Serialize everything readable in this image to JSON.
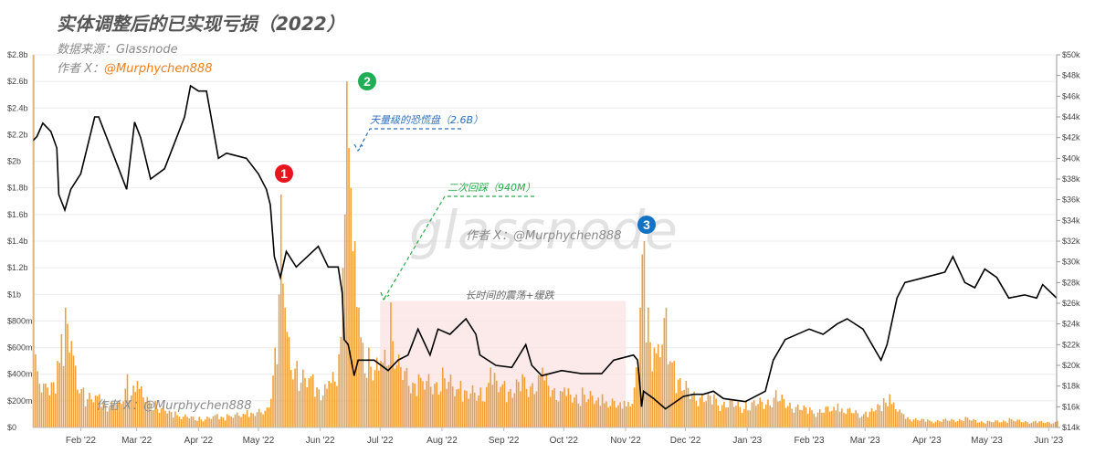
{
  "header": {
    "title": "实体调整后的已实现亏损（2022）",
    "source": "数据来源：Glassnode",
    "author_prefix": "作者 X：",
    "author_handle": "@Murphychen888"
  },
  "watermarks": {
    "logo": "glassnode",
    "center": "作者 X：@Murphychen888",
    "bottom": "作者 X：@Murphychen888"
  },
  "colors": {
    "bars": "#f0a03a",
    "price_line": "#000000",
    "shade": "#fbe3e3",
    "marker1": "#e8141e",
    "marker2": "#1fae55",
    "marker3": "#1272c4",
    "blue_annotation": "#2f6fbf",
    "green_annotation": "#2aa84a"
  },
  "annotations": {
    "marker1": "1",
    "marker2": "2",
    "marker3": "3",
    "panic": "天量级的恐慌盘（2.6B）",
    "retest": "二次回踩（940M）",
    "range": "长时间的震荡+缓跌"
  },
  "chart_data": {
    "type": "bar+line",
    "x_ticks": [
      "Feb '22",
      "Mar '22",
      "Apr '22",
      "May '22",
      "Jun '22",
      "Jul '22",
      "Aug '22",
      "Sep '22",
      "Oct '22",
      "Nov '22",
      "Dec '22",
      "Jan '23",
      "Feb '23",
      "Mar '23",
      "Apr '23",
      "May '23",
      "Jun '23"
    ],
    "x_range": [
      "2022-01-08",
      "2023-06-05"
    ],
    "y_left": {
      "ticks": [
        "$0",
        "$200m",
        "$400m",
        "$600m",
        "$800m",
        "$1b",
        "$1.2b",
        "$1.4b",
        "$1.6b",
        "$1.8b",
        "$2b",
        "$2.2b",
        "$2.4b",
        "$2.6b",
        "$2.8b"
      ],
      "range": [
        0,
        2.8
      ],
      "unit": "billion USD"
    },
    "y_right": {
      "ticks": [
        "$14k",
        "$16k",
        "$18k",
        "$20k",
        "$22k",
        "$24k",
        "$26k",
        "$28k",
        "$30k",
        "$32k",
        "$34k",
        "$36k",
        "$38k",
        "$40k",
        "$42k",
        "$44k",
        "$46k",
        "$48k",
        "$50k"
      ],
      "range": [
        14,
        50
      ],
      "unit": "thousand USD"
    },
    "series": [
      {
        "kind": "bars",
        "unit": "billion USD",
        "points": [
          [
            "2022-01-08",
            2.8
          ],
          [
            "2022-01-09",
            0.55
          ],
          [
            "2022-01-15",
            0.3
          ],
          [
            "2022-01-20",
            0.5
          ],
          [
            "2022-01-22",
            0.7
          ],
          [
            "2022-01-24",
            0.9
          ],
          [
            "2022-01-27",
            0.65
          ],
          [
            "2022-02-02",
            0.3
          ],
          [
            "2022-02-10",
            0.25
          ],
          [
            "2022-02-20",
            0.2
          ],
          [
            "2022-02-24",
            0.4
          ],
          [
            "2022-03-01",
            0.35
          ],
          [
            "2022-03-10",
            0.2
          ],
          [
            "2022-03-20",
            0.12
          ],
          [
            "2022-04-01",
            0.08
          ],
          [
            "2022-04-10",
            0.1
          ],
          [
            "2022-04-15",
            0.1
          ],
          [
            "2022-04-25",
            0.13
          ],
          [
            "2022-05-05",
            0.15
          ],
          [
            "2022-05-09",
            0.6
          ],
          [
            "2022-05-11",
            1.0
          ],
          [
            "2022-05-12",
            1.75
          ],
          [
            "2022-05-14",
            0.9
          ],
          [
            "2022-05-20",
            0.5
          ],
          [
            "2022-05-28",
            0.4
          ],
          [
            "2022-06-05",
            0.35
          ],
          [
            "2022-06-10",
            0.55
          ],
          [
            "2022-06-12",
            1.2
          ],
          [
            "2022-06-13",
            1.6
          ],
          [
            "2022-06-14",
            2.6
          ],
          [
            "2022-06-15",
            2.1
          ],
          [
            "2022-06-16",
            1.8
          ],
          [
            "2022-06-18",
            1.4
          ],
          [
            "2022-06-20",
            0.9
          ],
          [
            "2022-06-25",
            0.6
          ],
          [
            "2022-07-01",
            0.5
          ],
          [
            "2022-07-06",
            0.94
          ],
          [
            "2022-07-10",
            0.55
          ],
          [
            "2022-07-20",
            0.4
          ],
          [
            "2022-08-01",
            0.45
          ],
          [
            "2022-08-10",
            0.35
          ],
          [
            "2022-08-20",
            0.3
          ],
          [
            "2022-08-25",
            0.45
          ],
          [
            "2022-09-01",
            0.35
          ],
          [
            "2022-09-10",
            0.4
          ],
          [
            "2022-09-20",
            0.45
          ],
          [
            "2022-10-01",
            0.3
          ],
          [
            "2022-10-10",
            0.3
          ],
          [
            "2022-10-20",
            0.25
          ],
          [
            "2022-10-31",
            0.2
          ],
          [
            "2022-11-05",
            0.3
          ],
          [
            "2022-11-08",
            0.9
          ],
          [
            "2022-11-09",
            1.3
          ],
          [
            "2022-11-10",
            1.4
          ],
          [
            "2022-11-12",
            0.9
          ],
          [
            "2022-11-15",
            0.6
          ],
          [
            "2022-11-21",
            0.9
          ],
          [
            "2022-11-25",
            0.5
          ],
          [
            "2022-12-01",
            0.35
          ],
          [
            "2022-12-15",
            0.25
          ],
          [
            "2022-12-31",
            0.2
          ],
          [
            "2023-01-15",
            0.28
          ],
          [
            "2023-02-01",
            0.15
          ],
          [
            "2023-02-15",
            0.18
          ],
          [
            "2023-03-01",
            0.12
          ],
          [
            "2023-03-10",
            0.22
          ],
          [
            "2023-03-13",
            0.25
          ],
          [
            "2023-03-20",
            0.1
          ],
          [
            "2023-04-01",
            0.06
          ],
          [
            "2023-04-20",
            0.08
          ],
          [
            "2023-05-01",
            0.05
          ],
          [
            "2023-05-12",
            0.07
          ],
          [
            "2023-05-25",
            0.05
          ],
          [
            "2023-06-05",
            0.05
          ]
        ]
      },
      {
        "kind": "line",
        "unit": "thousand USD",
        "points": [
          [
            "2022-01-08",
            41.7
          ],
          [
            "2022-01-10",
            42.1
          ],
          [
            "2022-01-13",
            43.4
          ],
          [
            "2022-01-17",
            42.6
          ],
          [
            "2022-01-20",
            41.0
          ],
          [
            "2022-01-21",
            36.5
          ],
          [
            "2022-01-24",
            35.0
          ],
          [
            "2022-01-27",
            37.0
          ],
          [
            "2022-02-01",
            38.5
          ],
          [
            "2022-02-08",
            44.0
          ],
          [
            "2022-02-10",
            44.0
          ],
          [
            "2022-02-14",
            42.0
          ],
          [
            "2022-02-20",
            39.0
          ],
          [
            "2022-02-24",
            37.0
          ],
          [
            "2022-02-28",
            43.5
          ],
          [
            "2022-03-03",
            42.0
          ],
          [
            "2022-03-08",
            38.0
          ],
          [
            "2022-03-15",
            39.0
          ],
          [
            "2022-03-25",
            44.0
          ],
          [
            "2022-03-28",
            47.0
          ],
          [
            "2022-04-01",
            46.5
          ],
          [
            "2022-04-05",
            46.5
          ],
          [
            "2022-04-11",
            40.0
          ],
          [
            "2022-04-15",
            40.5
          ],
          [
            "2022-04-25",
            40.0
          ],
          [
            "2022-05-01",
            38.5
          ],
          [
            "2022-05-05",
            37.0
          ],
          [
            "2022-05-07",
            35.5
          ],
          [
            "2022-05-09",
            30.5
          ],
          [
            "2022-05-12",
            28.5
          ],
          [
            "2022-05-15",
            31.0
          ],
          [
            "2022-05-20",
            29.5
          ],
          [
            "2022-05-31",
            31.5
          ],
          [
            "2022-06-05",
            29.5
          ],
          [
            "2022-06-10",
            29.5
          ],
          [
            "2022-06-12",
            27.0
          ],
          [
            "2022-06-13",
            22.5
          ],
          [
            "2022-06-15",
            22.0
          ],
          [
            "2022-06-18",
            19.0
          ],
          [
            "2022-06-20",
            20.5
          ],
          [
            "2022-06-28",
            20.5
          ],
          [
            "2022-07-05",
            19.5
          ],
          [
            "2022-07-10",
            20.5
          ],
          [
            "2022-07-15",
            21.0
          ],
          [
            "2022-07-20",
            23.5
          ],
          [
            "2022-07-26",
            21.0
          ],
          [
            "2022-07-30",
            23.5
          ],
          [
            "2022-08-05",
            23.0
          ],
          [
            "2022-08-13",
            24.5
          ],
          [
            "2022-08-18",
            23.0
          ],
          [
            "2022-08-20",
            21.0
          ],
          [
            "2022-08-28",
            20.0
          ],
          [
            "2022-09-05",
            19.8
          ],
          [
            "2022-09-12",
            22.0
          ],
          [
            "2022-09-15",
            20.0
          ],
          [
            "2022-09-20",
            19.0
          ],
          [
            "2022-09-30",
            19.5
          ],
          [
            "2022-10-10",
            19.2
          ],
          [
            "2022-10-20",
            19.2
          ],
          [
            "2022-10-26",
            20.5
          ],
          [
            "2022-11-05",
            21.0
          ],
          [
            "2022-11-07",
            20.5
          ],
          [
            "2022-11-08",
            18.5
          ],
          [
            "2022-11-09",
            16.0
          ],
          [
            "2022-11-10",
            17.5
          ],
          [
            "2022-11-15",
            16.8
          ],
          [
            "2022-11-21",
            15.8
          ],
          [
            "2022-11-30",
            17.0
          ],
          [
            "2022-12-05",
            17.2
          ],
          [
            "2022-12-10",
            17.2
          ],
          [
            "2022-12-15",
            17.5
          ],
          [
            "2022-12-20",
            16.8
          ],
          [
            "2022-12-31",
            16.5
          ],
          [
            "2023-01-10",
            17.5
          ],
          [
            "2023-01-14",
            20.5
          ],
          [
            "2023-01-20",
            22.5
          ],
          [
            "2023-02-01",
            23.5
          ],
          [
            "2023-02-08",
            23.0
          ],
          [
            "2023-02-15",
            24.0
          ],
          [
            "2023-02-20",
            24.5
          ],
          [
            "2023-02-28",
            23.5
          ],
          [
            "2023-03-09",
            20.5
          ],
          [
            "2023-03-12",
            22.0
          ],
          [
            "2023-03-17",
            26.5
          ],
          [
            "2023-03-21",
            28.0
          ],
          [
            "2023-03-31",
            28.5
          ],
          [
            "2023-04-10",
            29.0
          ],
          [
            "2023-04-14",
            30.5
          ],
          [
            "2023-04-20",
            28.0
          ],
          [
            "2023-04-25",
            27.5
          ],
          [
            "2023-04-30",
            29.3
          ],
          [
            "2023-05-06",
            28.5
          ],
          [
            "2023-05-12",
            26.5
          ],
          [
            "2023-05-20",
            26.8
          ],
          [
            "2023-05-26",
            26.5
          ],
          [
            "2023-05-29",
            27.8
          ],
          [
            "2023-06-05",
            26.5
          ]
        ]
      }
    ],
    "grid": "horizontal",
    "legend": "none"
  }
}
